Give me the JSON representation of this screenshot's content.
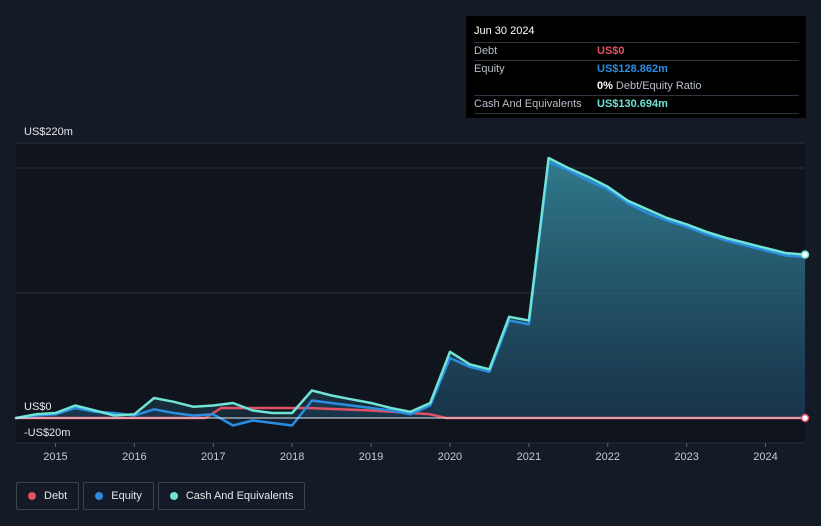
{
  "tooltip": {
    "date": "Jun 30 2024",
    "debt_label": "Debt",
    "debt_value": "US$0",
    "equity_label": "Equity",
    "equity_value": "US$128.862m",
    "ratio_pct": "0%",
    "ratio_text": "Debt/Equity Ratio",
    "cash_label": "Cash And Equivalents",
    "cash_value": "US$130.694m"
  },
  "legend": {
    "debt": "Debt",
    "equity": "Equity",
    "cash": "Cash And Equivalents"
  },
  "colors": {
    "debt": "#e05263",
    "equity": "#2b8ce0",
    "cash": "#6fe3d6",
    "background": "#151b26"
  },
  "chart_data": {
    "type": "area",
    "ylim": [
      -20,
      220
    ],
    "y_tick_labels": [
      "US$220m",
      "US$0",
      "-US$20m"
    ],
    "x_tick_labels": [
      "2015",
      "2016",
      "2017",
      "2018",
      "2019",
      "2020",
      "2021",
      "2022",
      "2023",
      "2024"
    ],
    "xlim": [
      2014.5,
      2024.5
    ],
    "legend_position": "bottom-left",
    "series": [
      {
        "name": "Debt",
        "x": [
          2014.5,
          2016.9,
          2017.1,
          2018.2,
          2019.0,
          2019.5,
          2019.75,
          2019.95,
          2024.5
        ],
        "values": [
          0,
          0,
          8,
          8,
          6,
          4,
          3,
          0,
          0
        ]
      },
      {
        "name": "Equity",
        "x": [
          2014.5,
          2014.75,
          2015.0,
          2015.25,
          2015.5,
          2015.75,
          2016.0,
          2016.25,
          2016.5,
          2016.75,
          2017.0,
          2017.25,
          2017.5,
          2017.75,
          2018.0,
          2018.25,
          2018.5,
          2018.75,
          2019.0,
          2019.25,
          2019.5,
          2019.75,
          2020.0,
          2020.25,
          2020.5,
          2020.75,
          2021.0,
          2021.25,
          2021.5,
          2021.75,
          2022.0,
          2022.25,
          2022.5,
          2022.75,
          2023.0,
          2023.25,
          2023.5,
          2023.75,
          2024.0,
          2024.25,
          2024.5
        ],
        "values": [
          0,
          2,
          3,
          8,
          5,
          4,
          2,
          7,
          4,
          2,
          3,
          -6,
          -2,
          -4,
          -6,
          14,
          12,
          10,
          8,
          6,
          3,
          10,
          48,
          41,
          37,
          78,
          75,
          205,
          198,
          190,
          183,
          172,
          164,
          158,
          153,
          147,
          142,
          138,
          134,
          130,
          128.862
        ]
      },
      {
        "name": "Cash And Equivalents",
        "x": [
          2014.5,
          2014.75,
          2015.0,
          2015.25,
          2015.5,
          2015.75,
          2016.0,
          2016.25,
          2016.5,
          2016.75,
          2017.0,
          2017.25,
          2017.5,
          2017.75,
          2018.0,
          2018.25,
          2018.5,
          2018.75,
          2019.0,
          2019.25,
          2019.5,
          2019.75,
          2020.0,
          2020.25,
          2020.5,
          2020.75,
          2021.0,
          2021.25,
          2021.5,
          2021.75,
          2022.0,
          2022.25,
          2022.5,
          2022.75,
          2023.0,
          2023.25,
          2023.5,
          2023.75,
          2024.0,
          2024.25,
          2024.5
        ],
        "values": [
          0,
          3,
          4,
          10,
          6,
          2,
          3,
          16,
          13,
          9,
          10,
          12,
          6,
          4,
          4,
          22,
          18,
          15,
          12,
          8,
          5,
          12,
          53,
          43,
          39,
          81,
          78,
          208,
          200,
          193,
          185,
          174,
          167,
          160,
          155,
          149,
          144,
          140,
          136,
          132,
          130.694
        ]
      }
    ]
  }
}
